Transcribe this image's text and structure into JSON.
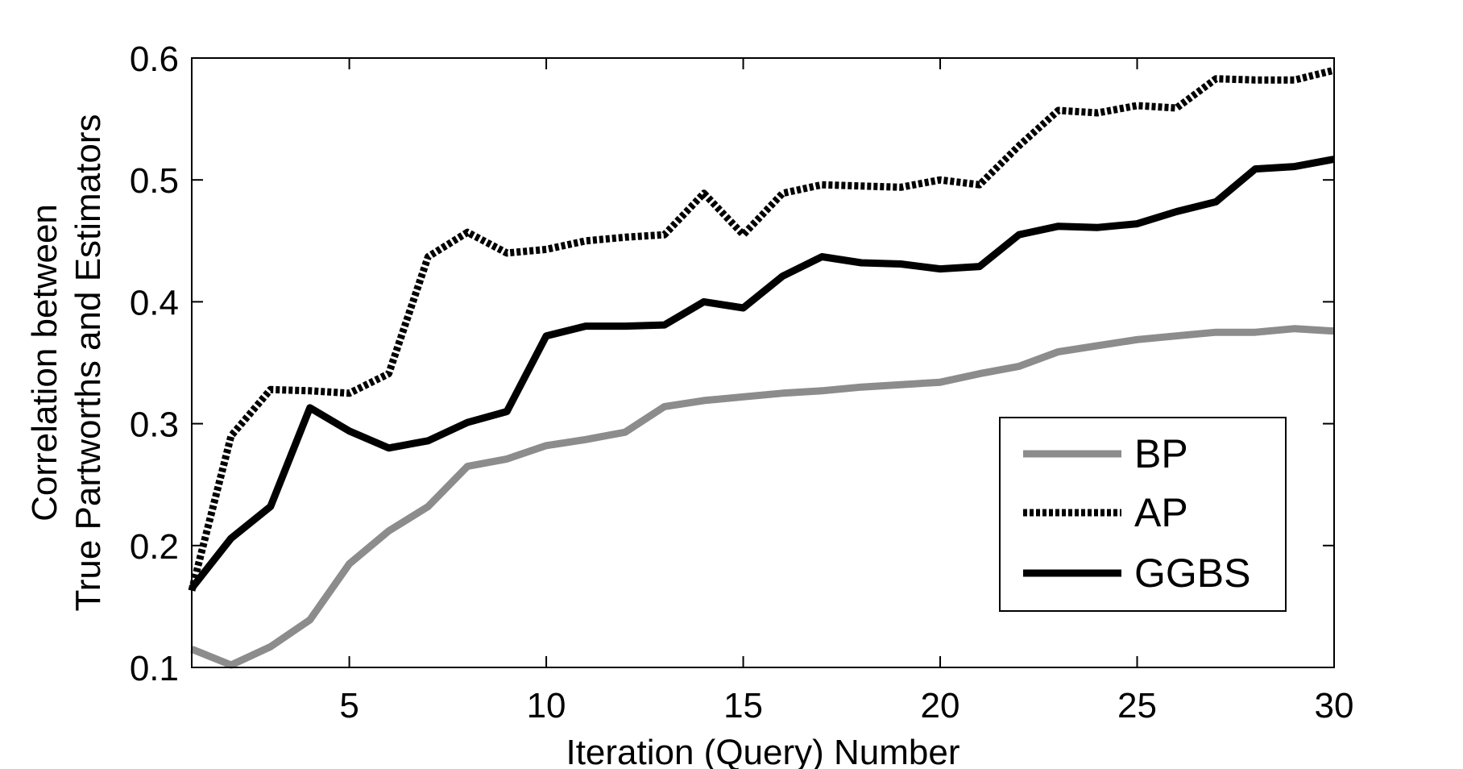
{
  "chart_data": {
    "type": "line",
    "xlabel": "Iteration (Query) Number",
    "ylabel": [
      "Correlation between",
      "True Partworths and Estimators"
    ],
    "xlim": [
      1,
      30
    ],
    "ylim": [
      0.1,
      0.6
    ],
    "xticks": [
      5,
      10,
      15,
      20,
      25,
      30
    ],
    "xtick_labels": [
      "5",
      "10",
      "15",
      "20",
      "25",
      "30"
    ],
    "yticks": [
      0.1,
      0.2,
      0.3,
      0.4,
      0.5,
      0.6
    ],
    "ytick_labels": [
      "0.1",
      "0.2",
      "0.3",
      "0.4",
      "0.5",
      "0.6"
    ],
    "grid": false,
    "legend_position": "bottom-right",
    "x": [
      1,
      2,
      3,
      4,
      5,
      6,
      7,
      8,
      9,
      10,
      11,
      12,
      13,
      14,
      15,
      16,
      17,
      18,
      19,
      20,
      21,
      22,
      23,
      24,
      25,
      26,
      27,
      28,
      29,
      30
    ],
    "series": [
      {
        "name": "BP",
        "color": "#8c8c8c",
        "style": "solid",
        "values": [
          0.115,
          0.102,
          0.117,
          0.139,
          0.185,
          0.212,
          0.232,
          0.265,
          0.271,
          0.282,
          0.287,
          0.293,
          0.314,
          0.319,
          0.322,
          0.325,
          0.327,
          0.33,
          0.332,
          0.334,
          0.341,
          0.347,
          0.359,
          0.364,
          0.369,
          0.372,
          0.375,
          0.375,
          0.378,
          0.376
        ]
      },
      {
        "name": "AP",
        "color": "#000000",
        "style": "dotted",
        "values": [
          0.163,
          0.29,
          0.328,
          0.327,
          0.325,
          0.341,
          0.437,
          0.457,
          0.44,
          0.443,
          0.45,
          0.453,
          0.455,
          0.489,
          0.455,
          0.489,
          0.496,
          0.495,
          0.494,
          0.5,
          0.496,
          0.528,
          0.557,
          0.555,
          0.561,
          0.559,
          0.583,
          0.582,
          0.582,
          0.59
        ]
      },
      {
        "name": "GGBS",
        "color": "#000000",
        "style": "solid",
        "values": [
          0.165,
          0.206,
          0.232,
          0.313,
          0.294,
          0.28,
          0.286,
          0.301,
          0.31,
          0.372,
          0.38,
          0.38,
          0.381,
          0.4,
          0.395,
          0.421,
          0.437,
          0.432,
          0.431,
          0.427,
          0.429,
          0.455,
          0.462,
          0.461,
          0.464,
          0.474,
          0.482,
          0.509,
          0.511,
          0.517
        ]
      }
    ]
  }
}
